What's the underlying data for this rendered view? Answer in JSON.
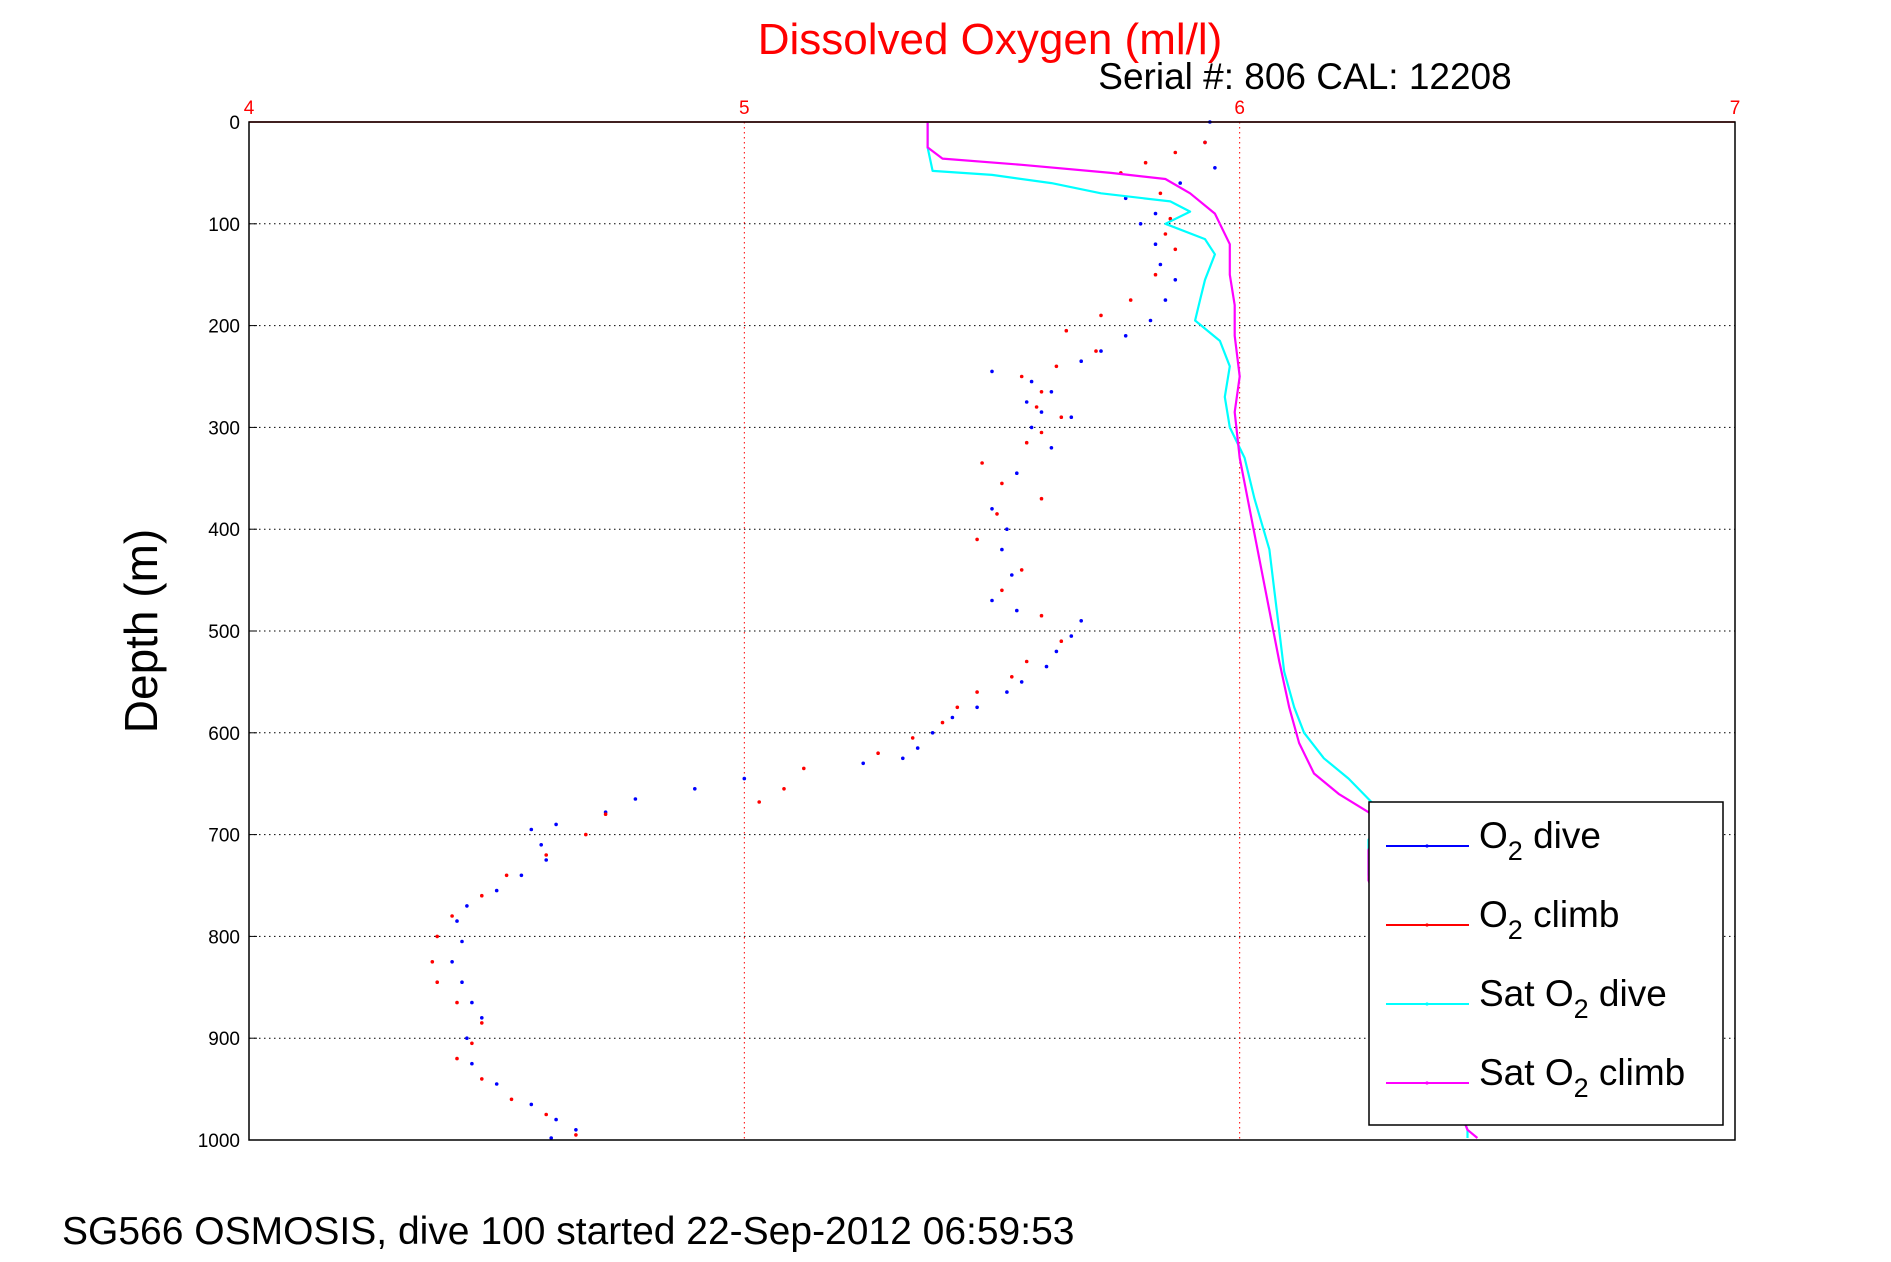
{
  "chart_data": {
    "type": "scatter",
    "title": "Dissolved Oxygen (ml/l)",
    "subtitle": "Serial #: 806  CAL: 12208",
    "xlabel": "",
    "ylabel": "Depth (m)",
    "xlim": [
      4,
      7
    ],
    "ylim": [
      0,
      1000
    ],
    "y_reversed": true,
    "x_axis_position": "top",
    "x_ticks": [
      "4",
      "5",
      "6",
      "7"
    ],
    "y_ticks": [
      "0",
      "100",
      "200",
      "300",
      "400",
      "500",
      "600",
      "700",
      "800",
      "900",
      "1000"
    ],
    "grid": true,
    "legend_position": "bottom-right",
    "colors": {
      "title": "#ff0000",
      "x_ticks": "#ff0000",
      "axes": "#000000"
    },
    "series": [
      {
        "name": "O2 dive",
        "legend_label": "O",
        "legend_sub": "2",
        "legend_suffix": " dive",
        "color": "#0000ff",
        "style": "dots",
        "points": [
          [
            5.94,
            0
          ],
          [
            5.93,
            20
          ],
          [
            5.95,
            45
          ],
          [
            5.88,
            60
          ],
          [
            5.77,
            75
          ],
          [
            5.83,
            90
          ],
          [
            5.8,
            100
          ],
          [
            5.83,
            120
          ],
          [
            5.84,
            140
          ],
          [
            5.87,
            155
          ],
          [
            5.85,
            175
          ],
          [
            5.82,
            195
          ],
          [
            5.77,
            210
          ],
          [
            5.72,
            225
          ],
          [
            5.68,
            235
          ],
          [
            5.5,
            245
          ],
          [
            5.58,
            255
          ],
          [
            5.62,
            265
          ],
          [
            5.57,
            275
          ],
          [
            5.6,
            285
          ],
          [
            5.66,
            290
          ],
          [
            5.58,
            300
          ],
          [
            5.62,
            320
          ],
          [
            5.55,
            345
          ],
          [
            5.5,
            380
          ],
          [
            5.53,
            400
          ],
          [
            5.52,
            420
          ],
          [
            5.54,
            445
          ],
          [
            5.5,
            470
          ],
          [
            5.55,
            480
          ],
          [
            5.68,
            490
          ],
          [
            5.66,
            505
          ],
          [
            5.63,
            520
          ],
          [
            5.61,
            535
          ],
          [
            5.56,
            550
          ],
          [
            5.53,
            560
          ],
          [
            5.47,
            575
          ],
          [
            5.42,
            585
          ],
          [
            5.38,
            600
          ],
          [
            5.35,
            615
          ],
          [
            5.32,
            625
          ],
          [
            5.24,
            630
          ],
          [
            5.0,
            645
          ],
          [
            4.9,
            655
          ],
          [
            4.78,
            665
          ],
          [
            4.72,
            678
          ],
          [
            4.62,
            690
          ],
          [
            4.57,
            695
          ],
          [
            4.59,
            710
          ],
          [
            4.6,
            725
          ],
          [
            4.55,
            740
          ],
          [
            4.5,
            755
          ],
          [
            4.44,
            770
          ],
          [
            4.42,
            785
          ],
          [
            4.43,
            805
          ],
          [
            4.41,
            825
          ],
          [
            4.43,
            845
          ],
          [
            4.45,
            865
          ],
          [
            4.47,
            880
          ],
          [
            4.44,
            900
          ],
          [
            4.45,
            925
          ],
          [
            4.5,
            945
          ],
          [
            4.57,
            965
          ],
          [
            4.62,
            980
          ],
          [
            4.66,
            990
          ],
          [
            4.61,
            998
          ]
        ]
      },
      {
        "name": "O2 climb",
        "legend_label": "O",
        "legend_sub": "2",
        "legend_suffix": " climb",
        "color": "#ff0000",
        "style": "dots",
        "points": [
          [
            5.93,
            20
          ],
          [
            5.87,
            30
          ],
          [
            5.81,
            40
          ],
          [
            5.76,
            50
          ],
          [
            5.84,
            70
          ],
          [
            5.86,
            95
          ],
          [
            5.85,
            110
          ],
          [
            5.87,
            125
          ],
          [
            5.83,
            150
          ],
          [
            5.78,
            175
          ],
          [
            5.72,
            190
          ],
          [
            5.65,
            205
          ],
          [
            5.71,
            225
          ],
          [
            5.63,
            240
          ],
          [
            5.56,
            250
          ],
          [
            5.6,
            265
          ],
          [
            5.59,
            280
          ],
          [
            5.64,
            290
          ],
          [
            5.6,
            305
          ],
          [
            5.57,
            315
          ],
          [
            5.48,
            335
          ],
          [
            5.52,
            355
          ],
          [
            5.6,
            370
          ],
          [
            5.51,
            385
          ],
          [
            5.47,
            410
          ],
          [
            5.56,
            440
          ],
          [
            5.52,
            460
          ],
          [
            5.6,
            485
          ],
          [
            5.64,
            510
          ],
          [
            5.57,
            530
          ],
          [
            5.54,
            545
          ],
          [
            5.47,
            560
          ],
          [
            5.43,
            575
          ],
          [
            5.4,
            590
          ],
          [
            5.34,
            605
          ],
          [
            5.27,
            620
          ],
          [
            5.12,
            635
          ],
          [
            5.08,
            655
          ],
          [
            5.03,
            668
          ],
          [
            4.72,
            680
          ],
          [
            4.68,
            700
          ],
          [
            4.6,
            720
          ],
          [
            4.52,
            740
          ],
          [
            4.47,
            760
          ],
          [
            4.41,
            780
          ],
          [
            4.38,
            800
          ],
          [
            4.37,
            825
          ],
          [
            4.38,
            845
          ],
          [
            4.42,
            865
          ],
          [
            4.47,
            885
          ],
          [
            4.45,
            905
          ],
          [
            4.42,
            920
          ],
          [
            4.47,
            940
          ],
          [
            4.53,
            960
          ],
          [
            4.6,
            975
          ],
          [
            4.66,
            995
          ]
        ]
      },
      {
        "name": "Sat O2 dive",
        "legend_label": "Sat O",
        "legend_sub": "2",
        "legend_suffix": " dive",
        "color": "#00ffff",
        "style": "line",
        "points": [
          [
            5.37,
            0
          ],
          [
            5.37,
            25
          ],
          [
            5.38,
            48
          ],
          [
            5.5,
            52
          ],
          [
            5.62,
            60
          ],
          [
            5.72,
            70
          ],
          [
            5.86,
            78
          ],
          [
            5.9,
            88
          ],
          [
            5.85,
            100
          ],
          [
            5.93,
            115
          ],
          [
            5.95,
            130
          ],
          [
            5.93,
            155
          ],
          [
            5.92,
            175
          ],
          [
            5.91,
            195
          ],
          [
            5.96,
            215
          ],
          [
            5.98,
            240
          ],
          [
            5.97,
            270
          ],
          [
            5.98,
            300
          ],
          [
            6.01,
            330
          ],
          [
            6.03,
            370
          ],
          [
            6.06,
            420
          ],
          [
            6.07,
            460
          ],
          [
            6.08,
            500
          ],
          [
            6.09,
            540
          ],
          [
            6.11,
            575
          ],
          [
            6.13,
            600
          ],
          [
            6.17,
            625
          ],
          [
            6.22,
            645
          ],
          [
            6.26,
            665
          ],
          [
            6.3,
            685
          ],
          [
            6.26,
            705
          ],
          [
            6.26,
            740
          ],
          [
            6.46,
            990
          ],
          [
            6.46,
            998
          ]
        ]
      },
      {
        "name": "Sat O2 climb",
        "legend_label": "Sat O",
        "legend_sub": "2",
        "legend_suffix": " climb",
        "color": "#ff00ff",
        "style": "line",
        "points": [
          [
            5.37,
            0
          ],
          [
            5.37,
            25
          ],
          [
            5.4,
            36
          ],
          [
            5.56,
            42
          ],
          [
            5.74,
            50
          ],
          [
            5.85,
            56
          ],
          [
            5.9,
            70
          ],
          [
            5.95,
            90
          ],
          [
            5.98,
            120
          ],
          [
            5.98,
            150
          ],
          [
            5.99,
            180
          ],
          [
            5.99,
            210
          ],
          [
            6.0,
            250
          ],
          [
            5.99,
            285
          ],
          [
            6.0,
            330
          ],
          [
            6.02,
            380
          ],
          [
            6.04,
            430
          ],
          [
            6.06,
            480
          ],
          [
            6.08,
            530
          ],
          [
            6.1,
            575
          ],
          [
            6.12,
            610
          ],
          [
            6.15,
            640
          ],
          [
            6.2,
            660
          ],
          [
            6.26,
            678
          ],
          [
            6.29,
            690
          ],
          [
            6.26,
            715
          ],
          [
            6.26,
            745
          ],
          [
            6.46,
            990
          ],
          [
            6.48,
            998
          ]
        ]
      }
    ]
  },
  "footer": {
    "caption": "SG566 OSMOSIS, dive 100 started 22-Sep-2012 06:59:53"
  }
}
